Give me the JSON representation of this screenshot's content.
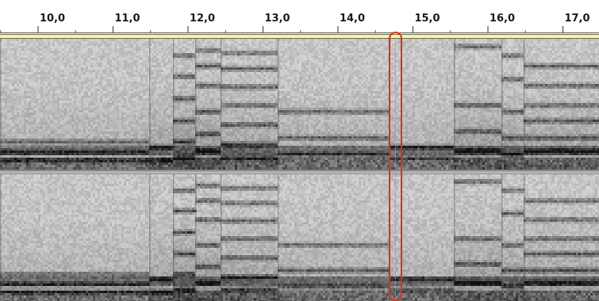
{
  "timeline": {
    "ticks": [
      {
        "value": 10.0,
        "label": "10,0"
      },
      {
        "value": 11.0,
        "label": "11,0"
      },
      {
        "value": 12.0,
        "label": "12,0"
      },
      {
        "value": 13.0,
        "label": "13,0"
      },
      {
        "value": 14.0,
        "label": "14,0"
      },
      {
        "value": 15.0,
        "label": "15,0"
      },
      {
        "value": 16.0,
        "label": "16,0"
      },
      {
        "value": 17.0,
        "label": "17,0"
      }
    ],
    "minor_tick_step": 0.5
  },
  "spectrogram": {
    "channels": [
      "channel-1",
      "channel-2"
    ],
    "colormap": "grayscale",
    "cursor_time": 14.7,
    "cursor_color": "#e03010",
    "selection_band_color": "#f6f2b0"
  }
}
